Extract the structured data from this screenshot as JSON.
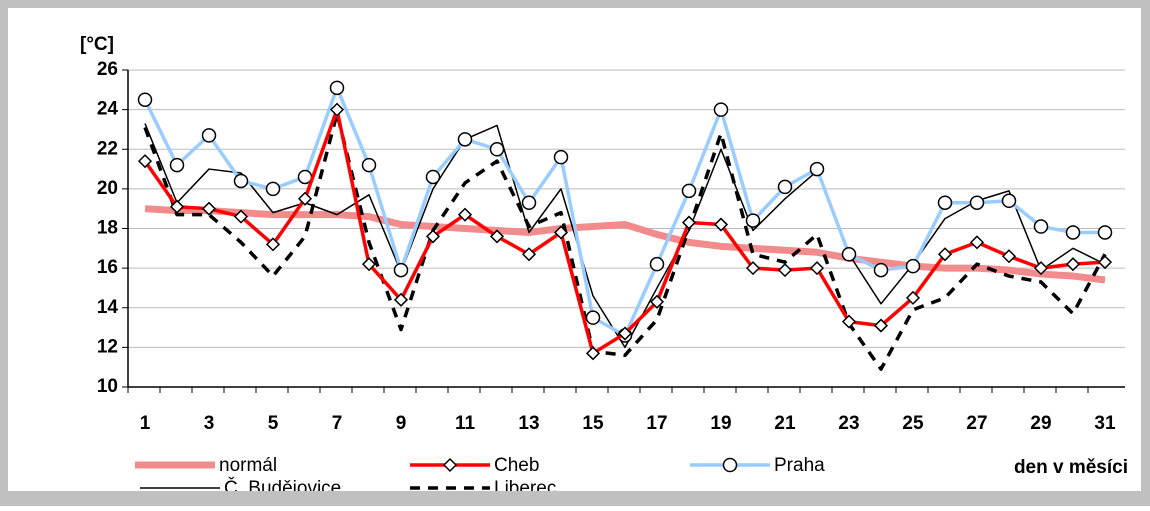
{
  "chart_data": {
    "type": "line",
    "y_label": "[°C]",
    "x_label": "den v měsíci",
    "categories": [
      "1",
      null,
      "3",
      null,
      "5",
      null,
      "7",
      null,
      "9",
      null,
      "11",
      null,
      "13",
      null,
      "15",
      null,
      "17",
      null,
      "19",
      null,
      "21",
      null,
      "23",
      null,
      "25",
      null,
      "27",
      null,
      "29",
      null,
      "31"
    ],
    "ylim": [
      10,
      26
    ],
    "yticks": [
      10,
      12,
      14,
      16,
      18,
      20,
      22,
      24,
      26
    ],
    "grid": true,
    "series": [
      {
        "name": "normál",
        "color": "#f28b8b",
        "width": 7,
        "dash": false,
        "marker": null,
        "values": [
          19.0,
          18.9,
          18.9,
          18.8,
          18.7,
          18.7,
          18.7,
          18.6,
          18.2,
          18.1,
          18.0,
          17.9,
          17.8,
          18.0,
          18.1,
          18.2,
          17.7,
          17.3,
          17.1,
          17.0,
          16.9,
          16.8,
          16.5,
          16.3,
          16.1,
          16.0,
          16.0,
          15.9,
          15.7,
          15.6,
          15.4
        ]
      },
      {
        "name": "Cheb",
        "color": "#ff0000",
        "width": 3.5,
        "dash": false,
        "marker": "diamond",
        "values": [
          21.4,
          19.1,
          19.0,
          18.6,
          17.2,
          19.5,
          24.0,
          16.2,
          14.4,
          17.6,
          18.7,
          17.6,
          16.7,
          17.8,
          11.7,
          12.7,
          14.3,
          18.3,
          18.2,
          16.0,
          15.9,
          16.0,
          13.3,
          13.1,
          14.5,
          16.7,
          17.3,
          16.6,
          16.0,
          16.2,
          16.3
        ]
      },
      {
        "name": "Praha",
        "color": "#99ccff",
        "width": 3.5,
        "dash": false,
        "marker": "circle",
        "values": [
          24.5,
          21.2,
          22.7,
          20.4,
          20.0,
          20.6,
          25.1,
          21.2,
          15.9,
          20.6,
          22.5,
          22.0,
          19.3,
          21.6,
          13.5,
          12.6,
          16.2,
          19.9,
          24.0,
          18.4,
          20.1,
          21.0,
          16.7,
          15.9,
          16.1,
          19.3,
          19.3,
          19.4,
          18.1,
          17.8,
          17.8
        ]
      },
      {
        "name": "Č. Budějovice",
        "color": "#000000",
        "width": 1.5,
        "dash": false,
        "marker": null,
        "values": [
          23.3,
          19.3,
          21.0,
          20.8,
          18.8,
          19.3,
          18.7,
          19.7,
          15.8,
          20.0,
          22.5,
          23.2,
          17.8,
          20.0,
          14.6,
          12.0,
          15.0,
          17.9,
          22.0,
          17.9,
          19.5,
          20.9,
          16.7,
          14.2,
          16.2,
          18.5,
          19.4,
          19.9,
          15.9,
          17.0,
          16.2
        ]
      },
      {
        "name": "Liberec",
        "color": "#000000",
        "width": 3.5,
        "dash": true,
        "marker": null,
        "values": [
          23.1,
          18.7,
          18.7,
          17.3,
          15.6,
          17.6,
          23.8,
          17.3,
          12.9,
          17.9,
          20.3,
          21.4,
          18.1,
          18.8,
          11.8,
          11.6,
          13.4,
          18.0,
          22.8,
          16.7,
          16.3,
          17.7,
          13.2,
          10.9,
          13.9,
          14.5,
          16.2,
          15.6,
          15.3,
          13.7,
          16.7
        ]
      }
    ]
  }
}
